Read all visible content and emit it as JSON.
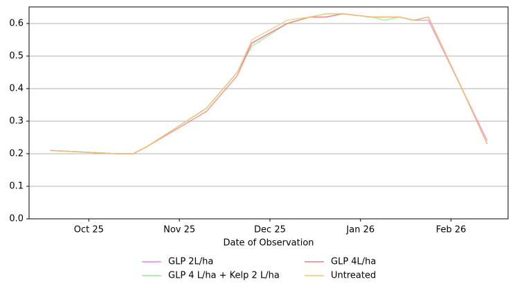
{
  "chart_data": {
    "type": "line",
    "xlabel": "Date of Observation",
    "x": [
      -0.43,
      0.31,
      0.49,
      0.63,
      1.3,
      1.64,
      1.8,
      2.19,
      2.44,
      2.62,
      2.8,
      3.12,
      3.27,
      3.43,
      3.59,
      3.75,
      4.12,
      4.4
    ],
    "series": [
      {
        "name": "GLP 2L/ha",
        "color": "#ee82ee",
        "values": [
          0.21,
          0.2,
          0.2,
          0.22,
          0.34,
          0.45,
          0.54,
          0.6,
          0.62,
          0.62,
          0.63,
          0.62,
          0.62,
          0.62,
          0.61,
          0.61,
          0.4,
          0.24
        ]
      },
      {
        "name": "GLP 4 L/ha + Kelp 2 L/ha",
        "color": "#90ee90",
        "values": [
          0.21,
          0.2,
          0.2,
          0.22,
          0.34,
          0.45,
          0.53,
          0.6,
          0.62,
          0.63,
          0.63,
          0.62,
          0.61,
          0.62,
          0.61,
          0.62,
          0.4,
          0.23
        ]
      },
      {
        "name": "GLP 4L/ha",
        "color": "#f08080",
        "values": [
          0.21,
          0.2,
          0.2,
          0.22,
          0.33,
          0.44,
          0.54,
          0.6,
          0.62,
          0.62,
          0.63,
          0.62,
          0.62,
          0.62,
          0.61,
          0.62,
          0.4,
          0.23
        ]
      },
      {
        "name": "Untreated",
        "color": "#f5c76b",
        "values": [
          0.21,
          0.2,
          0.2,
          0.22,
          0.34,
          0.45,
          0.55,
          0.61,
          0.62,
          0.63,
          0.63,
          0.62,
          0.62,
          0.62,
          0.61,
          0.62,
          0.4,
          0.23
        ]
      }
    ],
    "xlim": [
      -0.66,
      4.63
    ],
    "xticks": [
      {
        "value": 0,
        "label": "Oct 25"
      },
      {
        "value": 1,
        "label": "Nov 25"
      },
      {
        "value": 2,
        "label": "Dec 25"
      },
      {
        "value": 3,
        "label": "Jan 26"
      },
      {
        "value": 4,
        "label": "Feb 26"
      }
    ],
    "ylim": [
      0,
      0.651
    ],
    "yticks": [
      {
        "value": 0,
        "label": "0.0"
      },
      0.1,
      0.2,
      0.3,
      0.4,
      0.5,
      0.6
    ],
    "grid": true,
    "legend": "bottom"
  }
}
